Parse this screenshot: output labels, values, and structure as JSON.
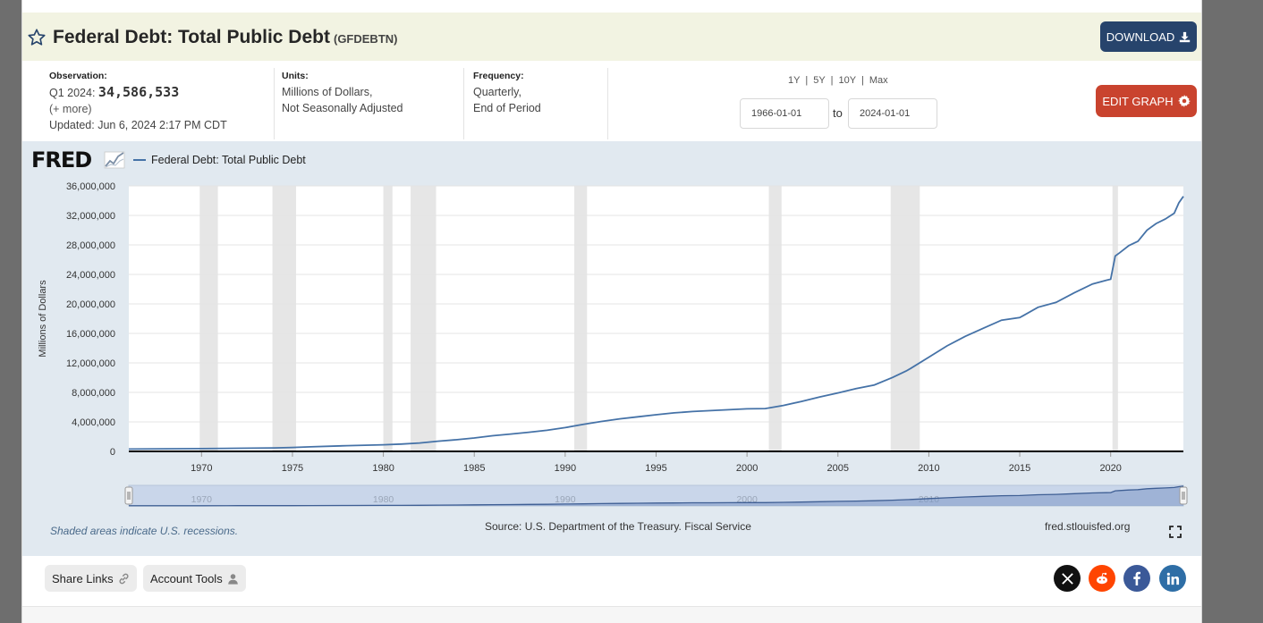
{
  "header": {
    "title": "Federal Debt: Total Public Debt",
    "series_id": "(GFDEBTN)",
    "download_label": "DOWNLOAD"
  },
  "meta": {
    "observation_label": "Observation:",
    "observation_period": "Q1 2024:",
    "observation_value": "34,586,533",
    "more": "(+ more)",
    "updated": "Updated: Jun 6, 2024 2:17 PM CDT",
    "units_label": "Units:",
    "units_line1": "Millions of Dollars,",
    "units_line2": "Not Seasonally Adjusted",
    "frequency_label": "Frequency:",
    "frequency_line1": "Quarterly,",
    "frequency_line2": "End of Period"
  },
  "controls": {
    "range_1y": "1Y",
    "range_5y": "5Y",
    "range_10y": "10Y",
    "range_max": "Max",
    "sep": "|",
    "start_date": "1966-01-01",
    "to_label": "to",
    "end_date": "2024-01-01",
    "edit_label": "EDIT GRAPH"
  },
  "chart_panel": {
    "logo_text": "FRED",
    "recession_note": "Shaded areas indicate U.S. recessions.",
    "source": "Source: U.S. Department of the Treasury. Fiscal Service",
    "site": "fred.stlouisfed.org"
  },
  "chart_data": {
    "type": "line",
    "title": "",
    "legend": [
      "Federal Debt: Total Public Debt"
    ],
    "legend_placement": "top-left",
    "xlabel": "",
    "ylabel": "Millions of Dollars",
    "xlim": [
      1966.0,
      2024.0
    ],
    "ylim": [
      0,
      36000000
    ],
    "y_ticks": [
      0,
      4000000,
      8000000,
      12000000,
      16000000,
      20000000,
      24000000,
      28000000,
      32000000,
      36000000
    ],
    "y_tick_labels": [
      "0",
      "4,000,000",
      "8,000,000",
      "12,000,000",
      "16,000,000",
      "20,000,000",
      "24,000,000",
      "28,000,000",
      "32,000,000",
      "36,000,000"
    ],
    "x_ticks": [
      1970,
      1975,
      1980,
      1985,
      1990,
      1995,
      2000,
      2005,
      2010,
      2015,
      2020
    ],
    "x_tick_labels": [
      "1970",
      "1975",
      "1980",
      "1985",
      "1990",
      "1995",
      "2000",
      "2005",
      "2010",
      "2015",
      "2020"
    ],
    "navigator_labels": [
      "1970",
      "1980",
      "1990",
      "2000",
      "2010"
    ],
    "navigator_ticks": [
      1970,
      1980,
      1990,
      2000,
      2010
    ],
    "grid": true,
    "line_color": "#4572a7",
    "recessions": [
      [
        1969.9,
        1970.9
      ],
      [
        1973.9,
        1975.2
      ],
      [
        1980.0,
        1980.5
      ],
      [
        1981.5,
        1982.9
      ],
      [
        1990.5,
        1991.2
      ],
      [
        2001.2,
        2001.9
      ],
      [
        2007.9,
        2009.5
      ],
      [
        2020.1,
        2020.4
      ]
    ],
    "series": [
      {
        "name": "Federal Debt: Total Public Debt",
        "x": [
          1966.0,
          1968.0,
          1970.0,
          1972.0,
          1974.0,
          1975.0,
          1976.0,
          1978.0,
          1980.0,
          1981.0,
          1982.0,
          1983.0,
          1984.0,
          1985.0,
          1986.0,
          1987.0,
          1988.0,
          1989.0,
          1990.0,
          1991.0,
          1992.0,
          1993.0,
          1994.0,
          1995.0,
          1996.0,
          1997.0,
          1998.0,
          1999.0,
          2000.0,
          2001.0,
          2002.0,
          2003.0,
          2004.0,
          2005.0,
          2006.0,
          2007.0,
          2008.0,
          2008.75,
          2009.0,
          2010.0,
          2011.0,
          2012.0,
          2013.0,
          2014.0,
          2015.0,
          2016.0,
          2017.0,
          2018.0,
          2019.0,
          2019.75,
          2020.0,
          2020.25,
          2020.5,
          2021.0,
          2021.5,
          2022.0,
          2022.5,
          2023.0,
          2023.5,
          2023.75,
          2024.0
        ],
        "y": [
          320000,
          350000,
          370000,
          420000,
          470000,
          530000,
          620000,
          780000,
          900000,
          990000,
          1140000,
          1380000,
          1570000,
          1820000,
          2120000,
          2350000,
          2600000,
          2860000,
          3230000,
          3660000,
          4060000,
          4410000,
          4690000,
          4970000,
          5220000,
          5410000,
          5530000,
          5650000,
          5770000,
          5800000,
          6230000,
          6780000,
          7380000,
          7930000,
          8510000,
          9010000,
          10020000,
          10900000,
          11250000,
          12780000,
          14300000,
          15600000,
          16700000,
          17800000,
          18150000,
          19540000,
          20200000,
          21500000,
          22700000,
          23200000,
          23350000,
          26500000,
          26950000,
          27900000,
          28500000,
          30000000,
          30900000,
          31500000,
          32300000,
          33700000,
          34586533
        ]
      }
    ]
  }
}
